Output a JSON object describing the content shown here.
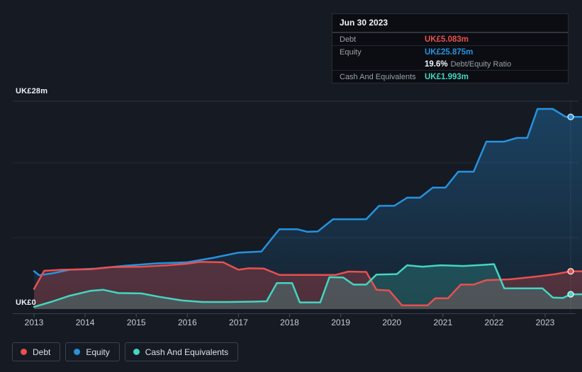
{
  "colors": {
    "background": "#151a23",
    "grid": "#232a36",
    "grid_top": "#2e3545",
    "axis_line": "#39414f",
    "tick": "#49505f",
    "axis_text": "#c9ced6",
    "label_text": "#eef1f5",
    "muted_text": "#99a1ab"
  },
  "tooltip": {
    "date": "Jun 30 2023",
    "debt_label": "Debt",
    "debt_value": "UK£5.083m",
    "equity_label": "Equity",
    "equity_value": "UK£25.875m",
    "ratio_value": "19.6%",
    "ratio_label": "Debt/Equity Ratio",
    "cash_label": "Cash And Equivalents",
    "cash_value": "UK£1.993m"
  },
  "legend": {
    "items": [
      {
        "label": "Debt"
      },
      {
        "label": "Equity"
      },
      {
        "label": "Cash And Equivalents"
      }
    ]
  },
  "chart_data": {
    "type": "area",
    "title": "",
    "unit": "UK£m",
    "x_range": [
      2013,
      2023.5
    ],
    "ylim": [
      0,
      28
    ],
    "grid": "on",
    "legend_position": "bottom-left",
    "y_axis": {
      "max_label": "UK£28m",
      "zero_label": "UK£0"
    },
    "x_ticks": [
      "2013",
      "2014",
      "2015",
      "2016",
      "2017",
      "2018",
      "2019",
      "2020",
      "2021",
      "2022",
      "2023"
    ],
    "series": [
      {
        "name": "Equity",
        "color": "#2693e0",
        "points": [
          [
            2013.0,
            5.1
          ],
          [
            2013.1,
            4.55
          ],
          [
            2013.35,
            4.8
          ],
          [
            2013.7,
            5.3
          ],
          [
            2014.2,
            5.45
          ],
          [
            2014.8,
            5.85
          ],
          [
            2015.4,
            6.15
          ],
          [
            2016.0,
            6.3
          ],
          [
            2016.5,
            6.9
          ],
          [
            2017.0,
            7.6
          ],
          [
            2017.45,
            7.75
          ],
          [
            2017.8,
            10.75
          ],
          [
            2018.15,
            10.75
          ],
          [
            2018.35,
            10.4
          ],
          [
            2018.55,
            10.45
          ],
          [
            2018.85,
            12.1
          ],
          [
            2019.5,
            12.1
          ],
          [
            2019.75,
            13.9
          ],
          [
            2020.05,
            13.9
          ],
          [
            2020.3,
            15.0
          ],
          [
            2020.55,
            15.0
          ],
          [
            2020.8,
            16.35
          ],
          [
            2021.05,
            16.35
          ],
          [
            2021.3,
            18.5
          ],
          [
            2021.6,
            18.5
          ],
          [
            2021.85,
            22.55
          ],
          [
            2022.2,
            22.55
          ],
          [
            2022.45,
            23.05
          ],
          [
            2022.65,
            23.05
          ],
          [
            2022.85,
            26.95
          ],
          [
            2023.15,
            26.95
          ],
          [
            2023.4,
            25.9
          ],
          [
            2023.5,
            25.875
          ]
        ]
      },
      {
        "name": "Debt",
        "color": "#e8504e",
        "points": [
          [
            2013.0,
            2.7
          ],
          [
            2013.2,
            5.15
          ],
          [
            2013.55,
            5.3
          ],
          [
            2014.1,
            5.35
          ],
          [
            2014.5,
            5.65
          ],
          [
            2015.1,
            5.7
          ],
          [
            2015.6,
            5.9
          ],
          [
            2016.0,
            6.1
          ],
          [
            2016.25,
            6.35
          ],
          [
            2016.7,
            6.3
          ],
          [
            2017.0,
            5.3
          ],
          [
            2017.2,
            5.5
          ],
          [
            2017.5,
            5.45
          ],
          [
            2017.8,
            4.6
          ],
          [
            2018.9,
            4.6
          ],
          [
            2019.15,
            5.05
          ],
          [
            2019.5,
            5.0
          ],
          [
            2019.7,
            2.6
          ],
          [
            2019.95,
            2.5
          ],
          [
            2020.2,
            0.5
          ],
          [
            2020.7,
            0.5
          ],
          [
            2020.85,
            1.45
          ],
          [
            2021.1,
            1.45
          ],
          [
            2021.35,
            3.3
          ],
          [
            2021.6,
            3.3
          ],
          [
            2021.85,
            3.9
          ],
          [
            2022.3,
            4.0
          ],
          [
            2022.8,
            4.35
          ],
          [
            2023.2,
            4.7
          ],
          [
            2023.5,
            5.083
          ]
        ]
      },
      {
        "name": "Cash And Equivalents",
        "color": "#43d6c2",
        "points": [
          [
            2013.0,
            0.3
          ],
          [
            2013.35,
            1.0
          ],
          [
            2013.7,
            1.8
          ],
          [
            2014.1,
            2.45
          ],
          [
            2014.35,
            2.6
          ],
          [
            2014.65,
            2.15
          ],
          [
            2015.1,
            2.1
          ],
          [
            2015.45,
            1.65
          ],
          [
            2015.9,
            1.15
          ],
          [
            2016.3,
            0.95
          ],
          [
            2016.8,
            0.95
          ],
          [
            2017.3,
            1.0
          ],
          [
            2017.55,
            1.05
          ],
          [
            2017.75,
            3.5
          ],
          [
            2018.05,
            3.5
          ],
          [
            2018.2,
            0.9
          ],
          [
            2018.6,
            0.9
          ],
          [
            2018.78,
            4.3
          ],
          [
            2019.05,
            4.25
          ],
          [
            2019.25,
            3.3
          ],
          [
            2019.5,
            3.3
          ],
          [
            2019.7,
            4.65
          ],
          [
            2020.1,
            4.7
          ],
          [
            2020.3,
            5.9
          ],
          [
            2020.6,
            5.7
          ],
          [
            2020.95,
            5.9
          ],
          [
            2021.4,
            5.8
          ],
          [
            2021.8,
            5.95
          ],
          [
            2022.0,
            6.05
          ],
          [
            2022.2,
            2.8
          ],
          [
            2022.95,
            2.78
          ],
          [
            2023.15,
            1.55
          ],
          [
            2023.35,
            1.5
          ],
          [
            2023.5,
            1.993
          ]
        ]
      }
    ]
  }
}
